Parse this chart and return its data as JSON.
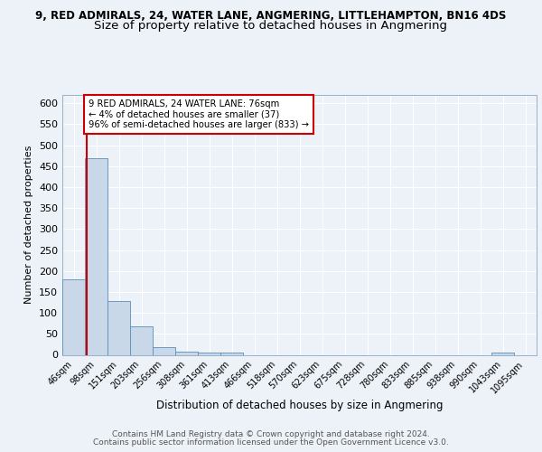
{
  "title_line1": "9, RED ADMIRALS, 24, WATER LANE, ANGMERING, LITTLEHAMPTON, BN16 4DS",
  "title_line2": "Size of property relative to detached houses in Angmering",
  "xlabel": "Distribution of detached houses by size in Angmering",
  "ylabel": "Number of detached properties",
  "categories": [
    "46sqm",
    "98sqm",
    "151sqm",
    "203sqm",
    "256sqm",
    "308sqm",
    "361sqm",
    "413sqm",
    "466sqm",
    "518sqm",
    "570sqm",
    "623sqm",
    "675sqm",
    "728sqm",
    "780sqm",
    "833sqm",
    "885sqm",
    "938sqm",
    "990sqm",
    "1043sqm",
    "1095sqm"
  ],
  "values": [
    180,
    470,
    128,
    69,
    19,
    8,
    5,
    5,
    0,
    0,
    0,
    0,
    0,
    0,
    0,
    0,
    0,
    0,
    0,
    6,
    0
  ],
  "bar_color": "#c8d8e8",
  "bar_edge_color": "#5b8db8",
  "annotation_text": "9 RED ADMIRALS, 24 WATER LANE: 76sqm\n← 4% of detached houses are smaller (37)\n96% of semi-detached houses are larger (833) →",
  "annotation_box_color": "#ffffff",
  "annotation_box_edge": "#cc0000",
  "red_line_color": "#cc0000",
  "ylim": [
    0,
    620
  ],
  "yticks": [
    0,
    50,
    100,
    150,
    200,
    250,
    300,
    350,
    400,
    450,
    500,
    550,
    600
  ],
  "footer_line1": "Contains HM Land Registry data © Crown copyright and database right 2024.",
  "footer_line2": "Contains public sector information licensed under the Open Government Licence v3.0.",
  "background_color": "#edf2f8",
  "grid_color": "#ffffff",
  "title1_fontsize": 8.5,
  "title2_fontsize": 9.5,
  "red_line_sqm": 76,
  "bin_centers_sqm": [
    46,
    98,
    151,
    203,
    256,
    308,
    361,
    413,
    466,
    518,
    570,
    623,
    675,
    728,
    780,
    833,
    885,
    938,
    990,
    1043,
    1095
  ]
}
